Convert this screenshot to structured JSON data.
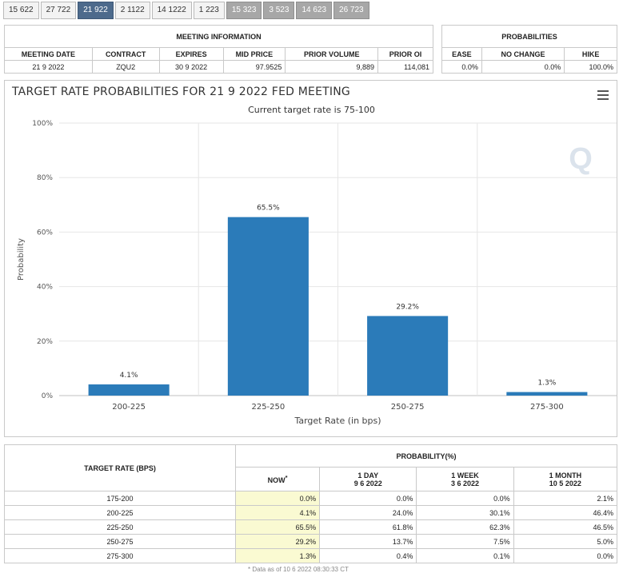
{
  "tabs": [
    "15 622",
    "27 722",
    "21 922",
    "2 1122",
    "14 1222",
    "1 223",
    "15 323",
    "3 523",
    "14 623",
    "26 723"
  ],
  "active_tab": 2,
  "meeting_info": {
    "header": "MEETING INFORMATION",
    "columns": [
      "MEETING DATE",
      "CONTRACT",
      "EXPIRES",
      "MID PRICE",
      "PRIOR VOLUME",
      "PRIOR OI"
    ],
    "values": [
      "21 9 2022",
      "ZQU2",
      "30 9 2022",
      "97.9525",
      "9,889",
      "114,081"
    ]
  },
  "probabilities": {
    "header": "PROBABILITIES",
    "columns": [
      "EASE",
      "NO CHANGE",
      "HIKE"
    ],
    "values": [
      "0.0%",
      "0.0%",
      "100.0%"
    ]
  },
  "chart_data": {
    "type": "bar",
    "title": "TARGET RATE PROBABILITIES FOR 21 9 2022 FED MEETING",
    "subtitle": "Current target rate is 75-100",
    "categories": [
      "200-225",
      "225-250",
      "250-275",
      "275-300"
    ],
    "values": [
      4.1,
      65.5,
      29.2,
      1.3
    ],
    "data_labels": [
      "4.1%",
      "65.5%",
      "29.2%",
      "1.3%"
    ],
    "xlabel": "Target Rate (in bps)",
    "ylabel": "Probability",
    "ylim": [
      0,
      100
    ],
    "yticks": [
      0,
      20,
      40,
      60,
      80,
      100
    ],
    "ytick_labels": [
      "0%",
      "20%",
      "40%",
      "60%",
      "80%",
      "100%"
    ],
    "grid": true,
    "bar_color": "#2b7bb9"
  },
  "prob_table": {
    "rate_header": "TARGET RATE (BPS)",
    "group_header": "PROBABILITY(%)",
    "columns": [
      {
        "line1": "NOW",
        "line2": ""
      },
      {
        "line1": "1 DAY",
        "line2": "9 6 2022"
      },
      {
        "line1": "1 WEEK",
        "line2": "3 6 2022"
      },
      {
        "line1": "1 MONTH",
        "line2": "10 5 2022"
      }
    ],
    "now_mark": "*",
    "rows": [
      {
        "rate": "175-200",
        "values": [
          "0.0%",
          "0.0%",
          "0.0%",
          "2.1%"
        ]
      },
      {
        "rate": "200-225",
        "values": [
          "4.1%",
          "24.0%",
          "30.1%",
          "46.4%"
        ]
      },
      {
        "rate": "225-250",
        "values": [
          "65.5%",
          "61.8%",
          "62.3%",
          "46.5%"
        ]
      },
      {
        "rate": "250-275",
        "values": [
          "29.2%",
          "13.7%",
          "7.5%",
          "5.0%"
        ]
      },
      {
        "rate": "275-300",
        "values": [
          "1.3%",
          "0.4%",
          "0.1%",
          "0.0%"
        ]
      }
    ],
    "footnote": "* Data as of 10 6 2022 08:30:33 CT"
  }
}
